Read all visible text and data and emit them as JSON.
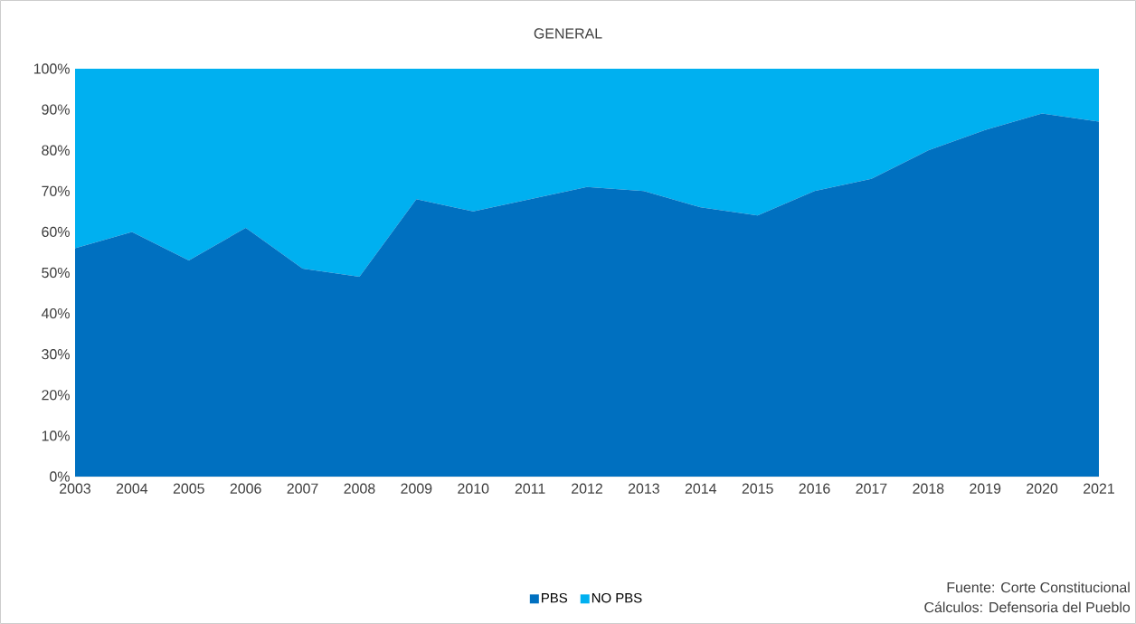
{
  "chart_data": {
    "type": "area",
    "title": "GENERAL",
    "stacked": true,
    "categories": [
      "2003",
      "2004",
      "2005",
      "2006",
      "2007",
      "2008",
      "2009",
      "2010",
      "2011",
      "2012",
      "2013",
      "2014",
      "2015",
      "2016",
      "2017",
      "2018",
      "2019",
      "2020",
      "2021"
    ],
    "series": [
      {
        "name": "PBS",
        "color": "#0070c0",
        "values": [
          56,
          60,
          53,
          61,
          51,
          49,
          68,
          65,
          68,
          71,
          70,
          66,
          64,
          70,
          73,
          80,
          85,
          89,
          87
        ]
      },
      {
        "name": "NO PBS",
        "color": "#00b0f0",
        "values": [
          44,
          40,
          47,
          39,
          49,
          51,
          32,
          35,
          32,
          29,
          30,
          34,
          36,
          30,
          27,
          20,
          15,
          11,
          13
        ]
      }
    ],
    "ylim": [
      0,
      100
    ],
    "yticks": [
      {
        "value": 0,
        "label": "0%"
      },
      {
        "value": 10,
        "label": "10%"
      },
      {
        "value": 20,
        "label": "20%"
      },
      {
        "value": 30,
        "label": "30%"
      },
      {
        "value": 40,
        "label": "40%"
      },
      {
        "value": 50,
        "label": "50%"
      },
      {
        "value": 60,
        "label": "60%"
      },
      {
        "value": 70,
        "label": "70%"
      },
      {
        "value": 80,
        "label": "80%"
      },
      {
        "value": 90,
        "label": "90%"
      },
      {
        "value": 100,
        "label": "100%"
      }
    ],
    "legend": "bottom",
    "annotations": [
      "Fuente: Corte Constitucional",
      "Cálculos: Defensoria del Pueblo"
    ]
  }
}
